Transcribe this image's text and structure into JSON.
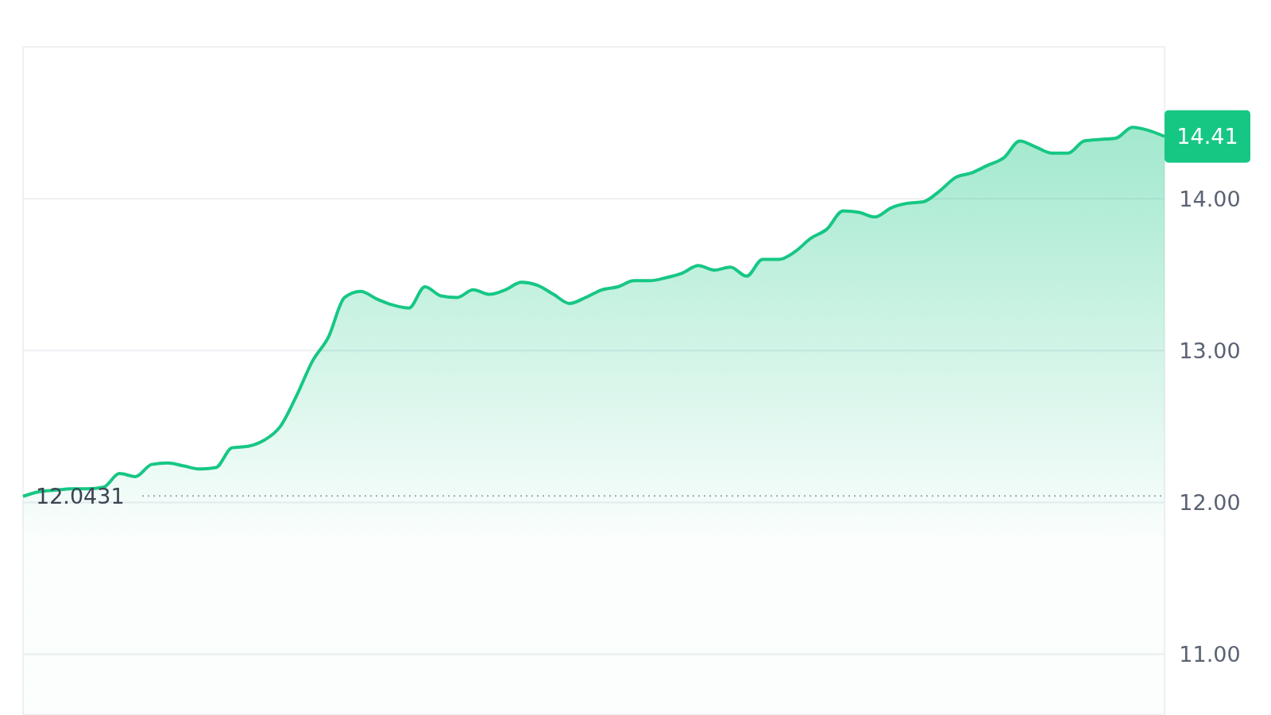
{
  "chart_data": {
    "type": "area",
    "categories": [
      null,
      null,
      null,
      null,
      null,
      null,
      null,
      null,
      null,
      null,
      null,
      null,
      null,
      null,
      null,
      null,
      null,
      null,
      null,
      null,
      null,
      null,
      null,
      null,
      null,
      null,
      null,
      null,
      null,
      null,
      null,
      null,
      null,
      null,
      null,
      null,
      null,
      null,
      null,
      null,
      null,
      null,
      null,
      null,
      null,
      null,
      null,
      null,
      null,
      null,
      null,
      null,
      null,
      null,
      null,
      null,
      null,
      null,
      null,
      null,
      null,
      null,
      null,
      null,
      null,
      null,
      null,
      null,
      null,
      null,
      null,
      null
    ],
    "series": [
      {
        "color": "#16c784",
        "values": [
          12.04,
          12.07,
          12.08,
          12.09,
          12.09,
          12.1,
          12.19,
          12.17,
          12.25,
          12.26,
          12.24,
          12.22,
          12.23,
          12.36,
          12.37,
          12.41,
          12.5,
          12.7,
          12.93,
          13.09,
          13.35,
          13.39,
          13.34,
          13.3,
          13.28,
          13.42,
          13.36,
          13.35,
          13.4,
          13.37,
          13.4,
          13.45,
          13.43,
          13.37,
          13.31,
          13.35,
          13.4,
          13.42,
          13.46,
          13.46,
          13.48,
          13.51,
          13.56,
          13.53,
          13.55,
          13.49,
          13.6,
          13.6,
          13.65,
          13.74,
          13.8,
          13.92,
          13.91,
          13.88,
          13.94,
          13.97,
          13.98,
          14.05,
          14.14,
          14.17,
          14.22,
          14.27,
          14.38,
          14.34,
          14.3,
          14.3,
          14.38,
          14.39,
          14.4,
          14.47,
          14.45,
          14.41
        ]
      }
    ],
    "ylim": [
      10.6,
      15.0
    ],
    "yticks": [
      {
        "value": 11,
        "label": "11.00"
      },
      {
        "value": 12,
        "label": "12.00"
      },
      {
        "value": 13,
        "label": "13.00"
      },
      {
        "value": 14,
        "label": "14.00"
      }
    ],
    "grid": "y",
    "tick_labels": "y",
    "ref_lines": [
      {
        "axis": "y",
        "value": 12.0431,
        "label": "12.0431",
        "line_style": "dotted",
        "color": "#a0a6b4"
      }
    ],
    "annotations": [
      "14.41"
    ]
  }
}
